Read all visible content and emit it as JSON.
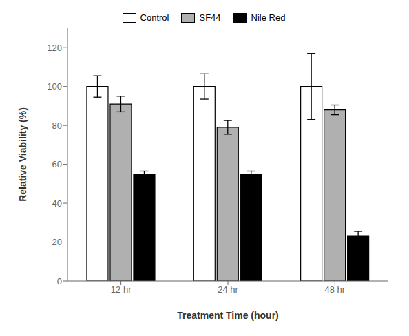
{
  "chart_data": {
    "type": "bar",
    "xlabel": "Treatment Time (hour)",
    "ylabel": "Relative Viability (%)",
    "categories": [
      "12 hr",
      "24 hr",
      "48 hr"
    ],
    "series": [
      {
        "name": "Control",
        "color": "#ffffff",
        "values": [
          100,
          100,
          100
        ],
        "errors": [
          5.5,
          6.5,
          17.0
        ]
      },
      {
        "name": "SF44",
        "color": "#b0b0b0",
        "values": [
          91,
          79,
          88
        ],
        "errors": [
          4.0,
          3.5,
          2.5
        ]
      },
      {
        "name": "Nile Red",
        "color": "#000000",
        "values": [
          55,
          55,
          23
        ],
        "errors": [
          1.5,
          1.5,
          2.5
        ]
      }
    ],
    "ylim": [
      0,
      130
    ],
    "yticks": [
      0,
      20,
      40,
      60,
      80,
      100,
      120
    ],
    "grid": false,
    "legend": "top"
  }
}
